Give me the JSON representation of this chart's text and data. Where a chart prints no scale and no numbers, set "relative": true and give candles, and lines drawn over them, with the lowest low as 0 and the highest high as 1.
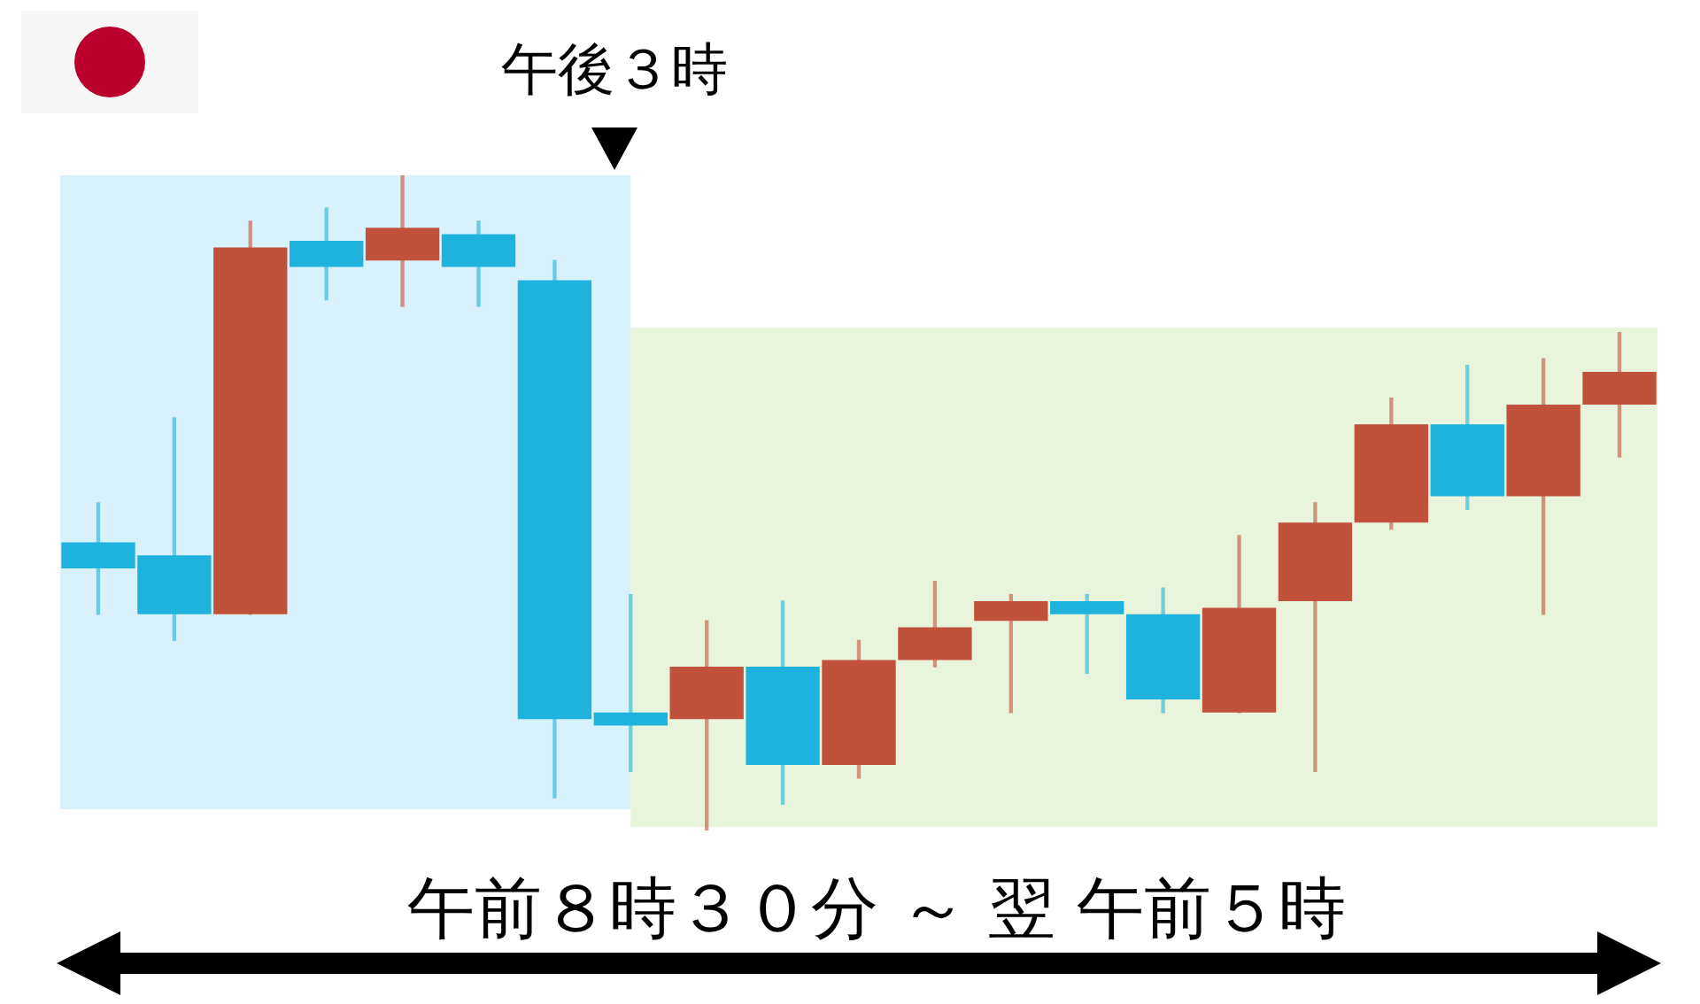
{
  "chart_data": {
    "type": "candlestick",
    "relative": true,
    "annotations": [
      "午後３時",
      "午前８時３０分 ～ 翌 午前５時"
    ],
    "categories": [
      null,
      null,
      null,
      null,
      null,
      null,
      null,
      null,
      null,
      null,
      null,
      null,
      null,
      null,
      null,
      null,
      null,
      null,
      null,
      null,
      null
    ],
    "ohlc": [
      [
        0.44,
        0.5,
        0.33,
        0.4
      ],
      [
        0.42,
        0.63,
        0.29,
        0.33
      ],
      [
        0.33,
        0.93,
        0.33,
        0.89
      ],
      [
        0.9,
        0.95,
        0.81,
        0.86
      ],
      [
        0.87,
        1,
        0.8,
        0.92
      ],
      [
        0.91,
        0.93,
        0.8,
        0.86
      ],
      [
        0.84,
        0.87,
        0.05,
        0.17
      ],
      [
        0.18,
        0.36,
        0.09,
        0.16
      ],
      [
        0.17,
        0.32,
        0,
        0.25
      ],
      [
        0.25,
        0.35,
        0.04,
        0.1
      ],
      [
        0.1,
        0.29,
        0.08,
        0.26
      ],
      [
        0.26,
        0.38,
        0.25,
        0.31
      ],
      [
        0.32,
        0.36,
        0.18,
        0.35
      ],
      [
        0.35,
        0.36,
        0.24,
        0.33
      ],
      [
        0.33,
        0.37,
        0.18,
        0.2
      ],
      [
        0.18,
        0.45,
        0.18,
        0.34
      ],
      [
        0.35,
        0.5,
        0.09,
        0.47
      ],
      [
        0.47,
        0.66,
        0.46,
        0.62
      ],
      [
        0.62,
        0.71,
        0.49,
        0.51
      ],
      [
        0.51,
        0.72,
        0.33,
        0.65
      ],
      [
        0.65,
        0.76,
        0.57,
        0.7
      ]
    ],
    "colors": [
      "#1eb2dc",
      "#1eb2dc",
      "#c0513a",
      "#1eb2dc",
      "#c0513a",
      "#1eb2dc",
      "#1eb2dc",
      "#1eb2dc",
      "#c0513a",
      "#1eb2dc",
      "#c0513a",
      "#c0513a",
      "#c0513a",
      "#1eb2dc",
      "#1eb2dc",
      "#c0513a",
      "#c0513a",
      "#c0513a",
      "#1eb2dc",
      "#c0513a",
      "#c0513a"
    ]
  }
}
